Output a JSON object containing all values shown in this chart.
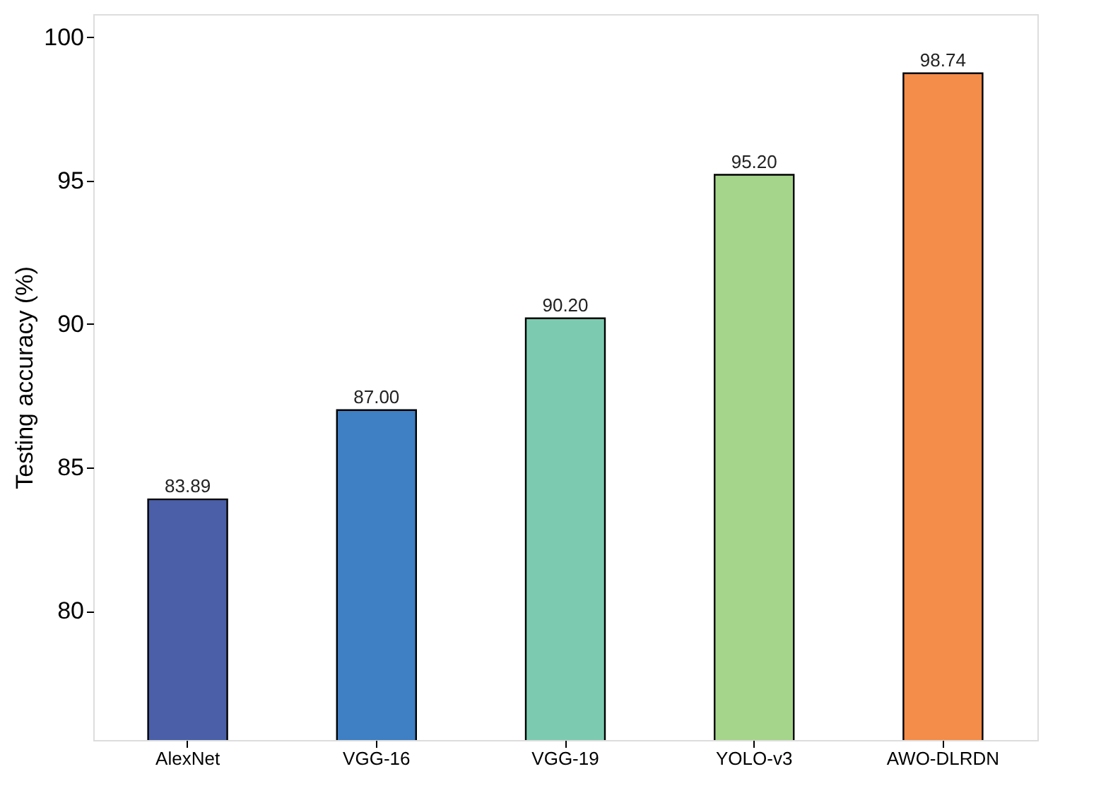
{
  "chart_data": {
    "type": "bar",
    "ylabel": "Testing accuracy (%)",
    "categories": [
      "AlexNet",
      "VGG-16",
      "VGG-19",
      "YOLO-v3",
      "AWO-DLRDN"
    ],
    "values": [
      83.89,
      87.0,
      90.2,
      95.2,
      98.74
    ],
    "colors": [
      "#4a5fa8",
      "#3f7fc4",
      "#7ccbb0",
      "#a5d48b",
      "#f48c4a"
    ],
    "value_labels": [
      "83.89",
      "87.00",
      "90.20",
      "95.20",
      "98.74"
    ],
    "ylim": [
      75.5,
      100.8
    ],
    "yticks": [
      80,
      85,
      90,
      95,
      100
    ],
    "grid": false,
    "legend": false
  }
}
